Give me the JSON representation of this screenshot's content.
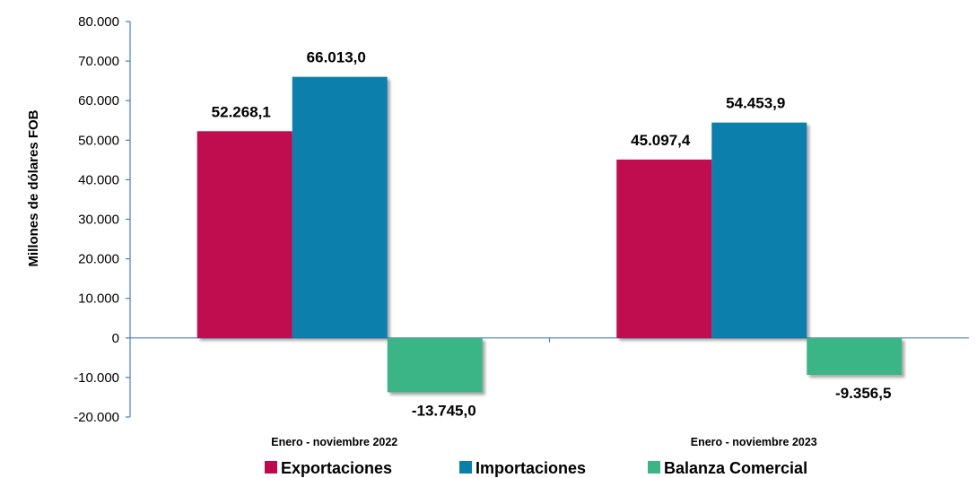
{
  "chart_data": {
    "type": "bar",
    "categories": [
      "Enero - noviembre 2022",
      "Enero - noviembre 2023"
    ],
    "series": [
      {
        "name": "Exportaciones",
        "values": [
          52268.1,
          45097.4
        ],
        "labels": [
          "52.268,1",
          "45.097,4"
        ],
        "color": "#c0084f"
      },
      {
        "name": "Importaciones",
        "values": [
          66013.0,
          54453.9
        ],
        "labels": [
          "66.013,0",
          "54.453,9"
        ],
        "color": "#0a7fac"
      },
      {
        "name": "Balanza Comercial",
        "values": [
          -13745.0,
          -9356.5
        ],
        "labels": [
          "-13.745,0",
          "-9.356,5"
        ],
        "color": "#3bb585"
      }
    ],
    "ylabel": "Millones de dólares FOB",
    "ylim": [
      -20000,
      80000
    ],
    "yticks": [
      80000,
      70000,
      60000,
      50000,
      40000,
      30000,
      20000,
      10000,
      0,
      -10000,
      -20000
    ],
    "ytick_labels": [
      "80.000",
      "70.000",
      "60.000",
      "50.000",
      "40.000",
      "30.000",
      "20.000",
      "10.000",
      "0",
      "-10.000",
      "-20.000"
    ],
    "grid": false,
    "legend": "bottom",
    "axis_color": "#4a7ebb"
  }
}
